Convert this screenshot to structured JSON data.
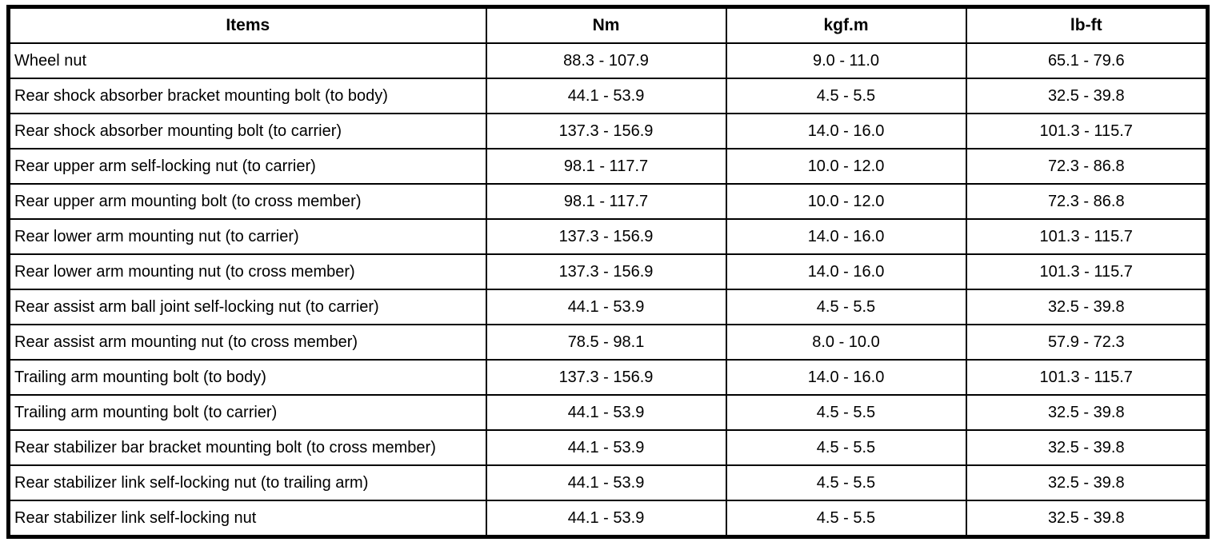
{
  "table": {
    "columns": {
      "items": "Items",
      "nm": "Nm",
      "kgfm": "kgf.m",
      "lbft": "lb-ft"
    },
    "rows": [
      {
        "item": "Wheel nut",
        "nm": "88.3 - 107.9",
        "kgfm": "9.0 - 11.0",
        "lbft": "65.1 - 79.6"
      },
      {
        "item": "Rear shock absorber bracket mounting bolt (to body)",
        "nm": "44.1 - 53.9",
        "kgfm": "4.5 - 5.5",
        "lbft": "32.5 - 39.8"
      },
      {
        "item": "Rear shock absorber mounting bolt (to carrier)",
        "nm": "137.3 - 156.9",
        "kgfm": "14.0 - 16.0",
        "lbft": "101.3 - 115.7"
      },
      {
        "item": "Rear upper arm self-locking nut (to carrier)",
        "nm": "98.1 - 117.7",
        "kgfm": "10.0 - 12.0",
        "lbft": "72.3 - 86.8"
      },
      {
        "item": "Rear upper arm mounting bolt (to cross member)",
        "nm": "98.1 - 117.7",
        "kgfm": "10.0 - 12.0",
        "lbft": "72.3 - 86.8"
      },
      {
        "item": "Rear lower arm mounting nut (to carrier)",
        "nm": "137.3 - 156.9",
        "kgfm": "14.0 - 16.0",
        "lbft": "101.3 - 115.7"
      },
      {
        "item": "Rear lower arm mounting nut (to cross member)",
        "nm": "137.3 - 156.9",
        "kgfm": "14.0 - 16.0",
        "lbft": "101.3 - 115.7"
      },
      {
        "item": "Rear assist arm ball joint self-locking nut (to carrier)",
        "nm": "44.1 - 53.9",
        "kgfm": "4.5 - 5.5",
        "lbft": "32.5 - 39.8"
      },
      {
        "item": "Rear assist arm mounting nut (to cross member)",
        "nm": "78.5 - 98.1",
        "kgfm": "8.0 - 10.0",
        "lbft": "57.9 - 72.3"
      },
      {
        "item": "Trailing arm mounting bolt (to body)",
        "nm": "137.3 - 156.9",
        "kgfm": "14.0 - 16.0",
        "lbft": "101.3 - 115.7"
      },
      {
        "item": "Trailing arm mounting bolt (to carrier)",
        "nm": "44.1 - 53.9",
        "kgfm": "4.5 - 5.5",
        "lbft": "32.5 - 39.8"
      },
      {
        "item": "Rear stabilizer bar bracket mounting bolt (to cross member)",
        "nm": "44.1 - 53.9",
        "kgfm": "4.5 - 5.5",
        "lbft": "32.5 - 39.8"
      },
      {
        "item": "Rear stabilizer link self-locking nut (to trailing arm)",
        "nm": "44.1 - 53.9",
        "kgfm": "4.5 - 5.5",
        "lbft": "32.5 - 39.8"
      },
      {
        "item": "Rear stabilizer link self-locking nut",
        "nm": "44.1 - 53.9",
        "kgfm": "4.5 - 5.5",
        "lbft": "32.5 - 39.8"
      }
    ]
  },
  "colors": {
    "border": "#000000",
    "text": "#000000",
    "background": "#ffffff"
  }
}
